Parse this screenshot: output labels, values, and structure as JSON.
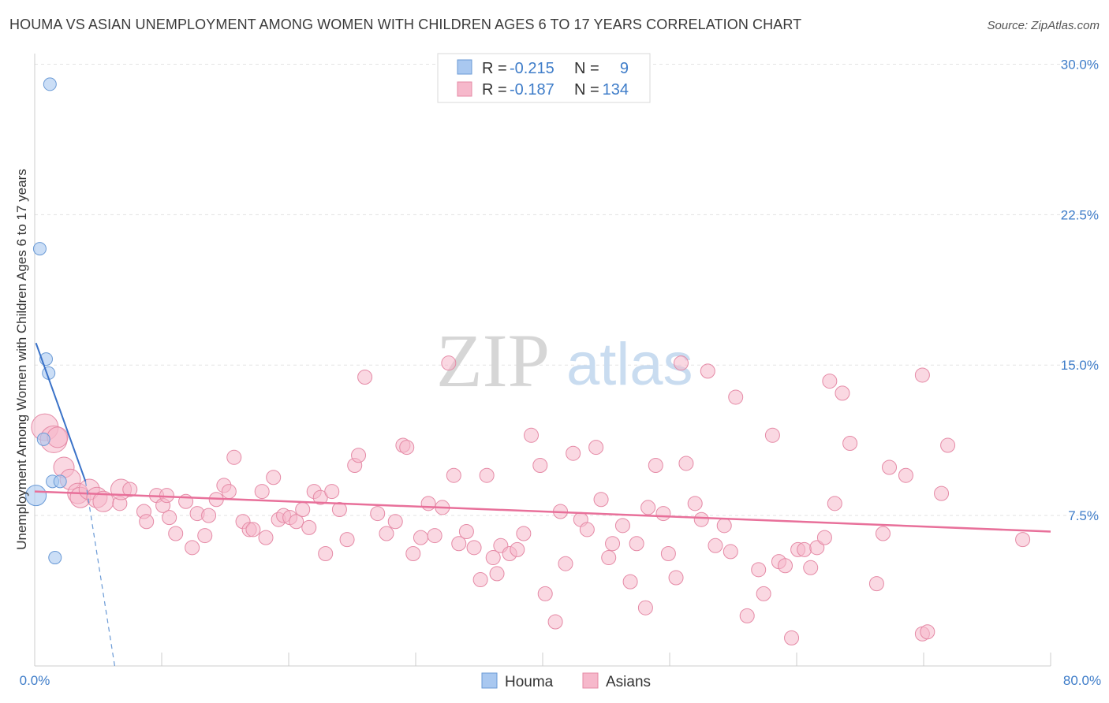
{
  "title": "HOUMA VS ASIAN UNEMPLOYMENT AMONG WOMEN WITH CHILDREN AGES 6 TO 17 YEARS CORRELATION CHART",
  "source": "Source: ZipAtlas.com",
  "watermark": {
    "part1": "ZIP",
    "part2": "atlas"
  },
  "colors": {
    "houma_fill": "#a9c8f0",
    "houma_stroke": "#6a9ad6",
    "houma_line": "#3a72c8",
    "asian_fill": "#f6b8cb",
    "asian_stroke": "#e58aa6",
    "asian_line": "#e8709a",
    "grid": "#e3e3e3",
    "axis_label": "#3f7dc9"
  },
  "legend": {
    "houma": {
      "r_label": "R =",
      "r_value": "-0.215",
      "n_label": "N =",
      "n_value": "9"
    },
    "asians": {
      "r_label": "R =",
      "r_value": "-0.187",
      "n_label": "N =",
      "n_value": "134"
    }
  },
  "chart_data": {
    "type": "scatter",
    "title": "HOUMA VS ASIAN UNEMPLOYMENT AMONG WOMEN WITH CHILDREN AGES 6 TO 17 YEARS CORRELATION CHART",
    "xlabel": "",
    "ylabel": "Unemployment Among Women with Children Ages 6 to 17 years",
    "xlim": [
      0,
      80
    ],
    "ylim": [
      0,
      31
    ],
    "x_tick_labels": [
      "0.0%",
      "80.0%"
    ],
    "y_ticks": [
      7.5,
      15.0,
      22.5,
      30.0
    ],
    "y_tick_labels": [
      "7.5%",
      "15.0%",
      "22.5%",
      "30.0%"
    ],
    "legend_placement": "top-center",
    "series": [
      {
        "name": "Houma",
        "points": [
          [
            1.2,
            29.0,
            1
          ],
          [
            0.4,
            20.8,
            1
          ],
          [
            0.9,
            15.3,
            1
          ],
          [
            1.1,
            14.6,
            1
          ],
          [
            0.7,
            11.3,
            1
          ],
          [
            1.4,
            9.2,
            1
          ],
          [
            2.0,
            9.2,
            1
          ],
          [
            0.1,
            8.5,
            2
          ],
          [
            1.6,
            5.4,
            1
          ]
        ],
        "trend": {
          "x0": 0.1,
          "y0": 16.1,
          "x1": 4.0,
          "y1": 9.2
        },
        "trend_dashed": {
          "x0": 4.0,
          "y0": 9.2,
          "x1": 6.3,
          "y1": 0.0
        }
      },
      {
        "name": "Asians",
        "trend": {
          "x0": 0.0,
          "y0": 8.7,
          "x1": 80.0,
          "y1": 6.7
        },
        "points": [
          [
            0.8,
            11.9,
            3
          ],
          [
            1.5,
            11.3,
            3
          ],
          [
            1.8,
            11.4,
            2
          ],
          [
            2.3,
            9.9,
            2
          ],
          [
            2.8,
            9.3,
            2
          ],
          [
            3.4,
            8.6,
            2
          ],
          [
            3.6,
            8.4,
            2
          ],
          [
            4.3,
            8.8,
            2
          ],
          [
            4.9,
            8.4,
            2
          ],
          [
            5.4,
            8.2,
            2
          ],
          [
            6.7,
            8.1,
            1
          ],
          [
            6.8,
            8.8,
            2
          ],
          [
            7.5,
            8.8,
            1
          ],
          [
            8.6,
            7.7,
            1
          ],
          [
            8.8,
            7.2,
            1
          ],
          [
            9.6,
            8.5,
            1
          ],
          [
            10.1,
            8.0,
            1
          ],
          [
            10.4,
            8.5,
            1
          ],
          [
            10.6,
            7.4,
            1
          ],
          [
            11.1,
            6.6,
            1
          ],
          [
            11.9,
            8.2,
            1
          ],
          [
            12.4,
            5.9,
            1
          ],
          [
            12.8,
            7.6,
            1
          ],
          [
            13.4,
            6.5,
            1
          ],
          [
            13.7,
            7.5,
            1
          ],
          [
            14.3,
            8.3,
            1
          ],
          [
            14.9,
            9.0,
            1
          ],
          [
            15.3,
            8.7,
            1
          ],
          [
            15.7,
            10.4,
            1
          ],
          [
            16.4,
            7.2,
            1
          ],
          [
            16.9,
            6.8,
            1
          ],
          [
            17.2,
            6.8,
            1
          ],
          [
            17.9,
            8.7,
            1
          ],
          [
            18.2,
            6.4,
            1
          ],
          [
            18.8,
            9.4,
            1
          ],
          [
            19.2,
            7.3,
            1
          ],
          [
            19.6,
            7.5,
            1
          ],
          [
            20.1,
            7.4,
            1
          ],
          [
            20.6,
            7.2,
            1
          ],
          [
            21.1,
            7.8,
            1
          ],
          [
            21.6,
            6.9,
            1
          ],
          [
            22.0,
            8.7,
            1
          ],
          [
            22.5,
            8.4,
            1
          ],
          [
            22.9,
            5.6,
            1
          ],
          [
            23.4,
            8.7,
            1
          ],
          [
            24.0,
            7.8,
            1
          ],
          [
            24.6,
            6.3,
            1
          ],
          [
            25.2,
            10.0,
            1
          ],
          [
            25.5,
            10.5,
            1
          ],
          [
            26.0,
            14.4,
            1
          ],
          [
            27.0,
            7.6,
            1
          ],
          [
            27.7,
            6.6,
            1
          ],
          [
            28.4,
            7.2,
            1
          ],
          [
            29.0,
            11.0,
            1
          ],
          [
            29.3,
            10.9,
            1
          ],
          [
            29.8,
            5.6,
            1
          ],
          [
            30.4,
            6.4,
            1
          ],
          [
            31.0,
            8.1,
            1
          ],
          [
            31.5,
            6.5,
            1
          ],
          [
            32.1,
            7.9,
            1
          ],
          [
            32.6,
            15.1,
            1
          ],
          [
            33.0,
            9.5,
            1
          ],
          [
            33.4,
            6.1,
            1
          ],
          [
            34.0,
            6.7,
            1
          ],
          [
            34.6,
            5.9,
            1
          ],
          [
            35.1,
            4.3,
            1
          ],
          [
            35.6,
            9.5,
            1
          ],
          [
            36.1,
            5.4,
            1
          ],
          [
            36.4,
            4.6,
            1
          ],
          [
            36.7,
            6.0,
            1
          ],
          [
            37.4,
            5.6,
            1
          ],
          [
            38.0,
            5.8,
            1
          ],
          [
            38.5,
            6.6,
            1
          ],
          [
            39.1,
            11.5,
            1
          ],
          [
            39.8,
            10.0,
            1
          ],
          [
            40.2,
            3.6,
            1
          ],
          [
            41.0,
            2.2,
            1
          ],
          [
            41.4,
            7.7,
            1
          ],
          [
            41.8,
            5.1,
            1
          ],
          [
            42.4,
            10.6,
            1
          ],
          [
            43.0,
            7.3,
            1
          ],
          [
            43.5,
            6.8,
            1
          ],
          [
            44.2,
            10.9,
            1
          ],
          [
            44.6,
            8.3,
            1
          ],
          [
            45.2,
            5.4,
            1
          ],
          [
            45.5,
            6.1,
            1
          ],
          [
            46.3,
            7.0,
            1
          ],
          [
            46.9,
            4.2,
            1
          ],
          [
            47.4,
            6.1,
            1
          ],
          [
            48.1,
            2.9,
            1
          ],
          [
            48.3,
            7.9,
            1
          ],
          [
            48.9,
            10.0,
            1
          ],
          [
            49.5,
            7.6,
            1
          ],
          [
            49.9,
            5.6,
            1
          ],
          [
            50.5,
            4.4,
            1
          ],
          [
            50.9,
            15.1,
            1
          ],
          [
            51.3,
            10.1,
            1
          ],
          [
            52.0,
            8.1,
            1
          ],
          [
            52.5,
            7.3,
            1
          ],
          [
            53.0,
            14.7,
            1
          ],
          [
            53.6,
            6.0,
            1
          ],
          [
            54.3,
            7.0,
            1
          ],
          [
            54.8,
            5.7,
            1
          ],
          [
            55.2,
            13.4,
            1
          ],
          [
            56.1,
            2.5,
            1
          ],
          [
            57.0,
            4.8,
            1
          ],
          [
            57.4,
            3.6,
            1
          ],
          [
            58.1,
            11.5,
            1
          ],
          [
            58.6,
            5.2,
            1
          ],
          [
            59.1,
            5.0,
            1
          ],
          [
            59.6,
            1.4,
            1
          ],
          [
            60.1,
            5.8,
            1
          ],
          [
            60.6,
            5.8,
            1
          ],
          [
            61.1,
            4.9,
            1
          ],
          [
            61.6,
            5.9,
            1
          ],
          [
            62.2,
            6.4,
            1
          ],
          [
            62.6,
            14.2,
            1
          ],
          [
            63.0,
            8.1,
            1
          ],
          [
            63.6,
            13.6,
            1
          ],
          [
            64.2,
            11.1,
            1
          ],
          [
            66.3,
            4.1,
            1
          ],
          [
            66.8,
            6.6,
            1
          ],
          [
            67.3,
            9.9,
            1
          ],
          [
            68.6,
            9.5,
            1
          ],
          [
            69.9,
            14.5,
            1
          ],
          [
            71.4,
            8.6,
            1
          ],
          [
            71.9,
            11.0,
            1
          ],
          [
            69.9,
            1.6,
            1
          ],
          [
            70.3,
            1.7,
            1
          ],
          [
            77.8,
            6.3,
            1
          ]
        ]
      }
    ]
  }
}
